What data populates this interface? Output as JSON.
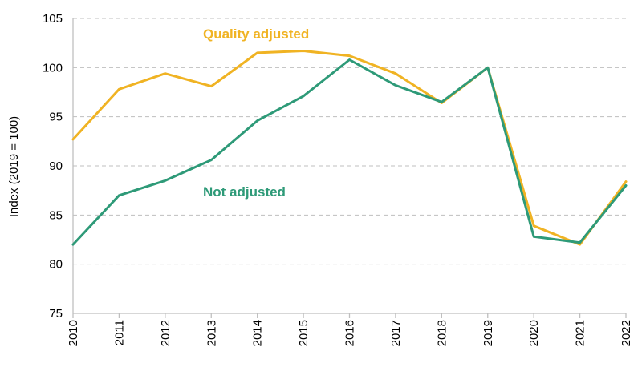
{
  "chart_data": {
    "type": "line",
    "title": "",
    "xlabel": "",
    "ylabel": "Index (2019 = 100)",
    "ylim": [
      75,
      105
    ],
    "yticks": [
      "75",
      "80",
      "85",
      "90",
      "95",
      "100",
      "105"
    ],
    "grid": true,
    "legend": "inline labels",
    "x": [
      "2010",
      "2011",
      "2012",
      "2013",
      "2014",
      "2015",
      "2016",
      "2017",
      "2018",
      "2019",
      "2020",
      "2021",
      "2022"
    ],
    "series": [
      {
        "name": "Quality adjusted",
        "color": "#f0b323",
        "values": [
          92.7,
          97.8,
          99.4,
          98.1,
          101.5,
          101.7,
          101.2,
          99.4,
          96.4,
          100.0,
          83.9,
          82.0,
          88.4
        ]
      },
      {
        "name": "Not adjusted",
        "color": "#2e9a78",
        "values": [
          82.0,
          87.0,
          88.5,
          90.6,
          94.6,
          97.1,
          100.8,
          98.2,
          96.5,
          100.0,
          82.8,
          82.2,
          88.0
        ]
      }
    ]
  }
}
